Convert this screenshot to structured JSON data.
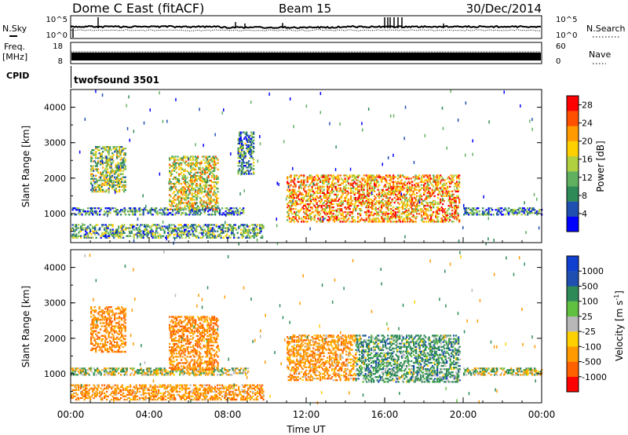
{
  "header": {
    "radar": "Dome C East (fitACF)",
    "beam": "Beam 15",
    "date": "30/Dec/2014"
  },
  "status_panels": {
    "nsky": {
      "label": "N.Sky",
      "ticks": [
        "10^5",
        "10^0"
      ]
    },
    "nsearch": {
      "label": "N.Search",
      "ticks": [
        "10^5",
        "10^0"
      ]
    },
    "freq": {
      "label_line1": "Freq.",
      "label_line2": "[MHz]",
      "ticks": [
        "18",
        "8"
      ]
    },
    "nave": {
      "label": "Nave",
      "ticks": [
        "60",
        "0"
      ]
    },
    "cpid": {
      "label": "CPID",
      "program": "twofsound 3501"
    }
  },
  "colors": {
    "power_scale": [
      "#0000ff",
      "#1f4fb0",
      "#2e8a57",
      "#60b060",
      "#b0d040",
      "#ffd000",
      "#ff9a00",
      "#ff5000",
      "#ff0000"
    ],
    "velocity_scale": [
      "#1040d0",
      "#1f4fb0",
      "#2e8a57",
      "#60c040",
      "#b8b8b8",
      "#ffd000",
      "#ff9a00",
      "#ff6000",
      "#ff0000"
    ]
  },
  "chart_data": [
    {
      "type": "heatmap",
      "title": "",
      "xlabel": "",
      "ylabel": "Slant Range [km]",
      "x_ticks": [
        "00:00",
        "04:00",
        "08:00",
        "12:00",
        "16:00",
        "20:00",
        "00:00"
      ],
      "xlim_hours": [
        0,
        24
      ],
      "y_ticks": [
        1000,
        2000,
        3000,
        4000
      ],
      "ylim": [
        180,
        4500
      ],
      "colorbar": {
        "label": "Power [dB]",
        "ticks": [
          4,
          8,
          12,
          16,
          20,
          24,
          28
        ],
        "range": [
          0,
          30
        ]
      },
      "echo_regions": [
        {
          "t": [
            0.0,
            9.8
          ],
          "r": [
            300,
            700
          ],
          "level": 0.35
        },
        {
          "t": [
            0.0,
            8.8
          ],
          "r": [
            950,
            1150
          ],
          "level": 0.25
        },
        {
          "t": [
            1.0,
            2.8
          ],
          "r": [
            1600,
            2900
          ],
          "level": 0.45
        },
        {
          "t": [
            5.0,
            7.5
          ],
          "r": [
            1100,
            2600
          ],
          "level": 0.55
        },
        {
          "t": [
            8.5,
            9.3
          ],
          "r": [
            2100,
            3300
          ],
          "level": 0.3
        },
        {
          "t": [
            11.0,
            19.8
          ],
          "r": [
            750,
            2100
          ],
          "level": 0.7
        },
        {
          "t": [
            20.0,
            24.0
          ],
          "r": [
            950,
            1150
          ],
          "level": 0.25
        }
      ]
    },
    {
      "type": "heatmap",
      "title": "",
      "xlabel": "Time UT",
      "ylabel": "Slant Range [km]",
      "x_ticks": [
        "00:00",
        "04:00",
        "08:00",
        "12:00",
        "16:00",
        "20:00",
        "00:00"
      ],
      "xlim_hours": [
        0,
        24
      ],
      "y_ticks": [
        1000,
        2000,
        3000,
        4000
      ],
      "ylim": [
        180,
        4500
      ],
      "colorbar": {
        "label": "Velocity [m s^-1]",
        "ticks": [
          "1000",
          "500",
          "100",
          "25",
          "-25",
          "-100",
          "-500",
          "-1000"
        ]
      },
      "echo_regions": [
        {
          "t": [
            0.0,
            9.8
          ],
          "r": [
            250,
            700
          ],
          "velocity": -200
        },
        {
          "t": [
            0.0,
            9.0
          ],
          "r": [
            950,
            1150
          ],
          "velocity": 0
        },
        {
          "t": [
            1.0,
            2.8
          ],
          "r": [
            1600,
            2900
          ],
          "velocity": -250
        },
        {
          "t": [
            5.0,
            7.5
          ],
          "r": [
            1100,
            2600
          ],
          "velocity": -250
        },
        {
          "t": [
            11.0,
            14.5
          ],
          "r": [
            800,
            2100
          ],
          "velocity": -200
        },
        {
          "t": [
            14.5,
            19.8
          ],
          "r": [
            750,
            2100
          ],
          "velocity": 150
        },
        {
          "t": [
            20.0,
            24.0
          ],
          "r": [
            950,
            1150
          ],
          "velocity": 0
        }
      ]
    }
  ]
}
